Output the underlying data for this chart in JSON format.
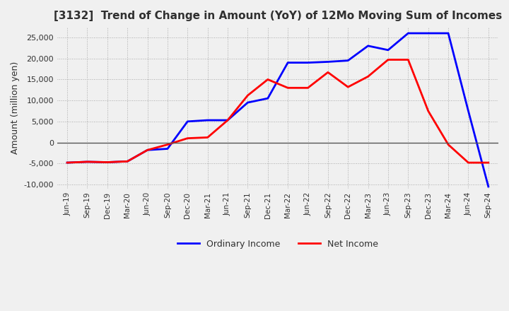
{
  "title": "[3132]  Trend of Change in Amount (YoY) of 12Mo Moving Sum of Incomes",
  "ylabel": "Amount (million yen)",
  "ylim": [
    -11000,
    27500
  ],
  "yticks": [
    -10000,
    -5000,
    0,
    5000,
    10000,
    15000,
    20000,
    25000
  ],
  "x_labels": [
    "Jun-19",
    "Sep-19",
    "Dec-19",
    "Mar-20",
    "Jun-20",
    "Sep-20",
    "Dec-20",
    "Mar-21",
    "Jun-21",
    "Sep-21",
    "Dec-21",
    "Mar-22",
    "Jun-22",
    "Sep-22",
    "Dec-22",
    "Mar-23",
    "Jun-23",
    "Sep-23",
    "Dec-23",
    "Mar-24",
    "Jun-24",
    "Sep-24"
  ],
  "ordinary_income": [
    -4800,
    -4600,
    -4700,
    -4500,
    -1800,
    -1500,
    5000,
    5300,
    5300,
    9500,
    10500,
    19000,
    19000,
    19200,
    19500,
    23000,
    22000,
    26000,
    26000,
    26000,
    7500,
    -10500
  ],
  "net_income": [
    -4800,
    -4600,
    -4700,
    -4500,
    -1800,
    -500,
    1000,
    1200,
    5300,
    11200,
    15000,
    13000,
    13000,
    16700,
    13200,
    15700,
    19700,
    19700,
    7500,
    -500,
    -4800,
    -4800
  ],
  "ordinary_color": "#0000ff",
  "net_color": "#ff0000",
  "background_color": "#f0f0f0",
  "plot_bg_color": "#f0f0f0",
  "grid_color": "#aaaaaa",
  "title_color": "#303030",
  "tick_color": "#303030",
  "legend_labels": [
    "Ordinary Income",
    "Net Income"
  ]
}
